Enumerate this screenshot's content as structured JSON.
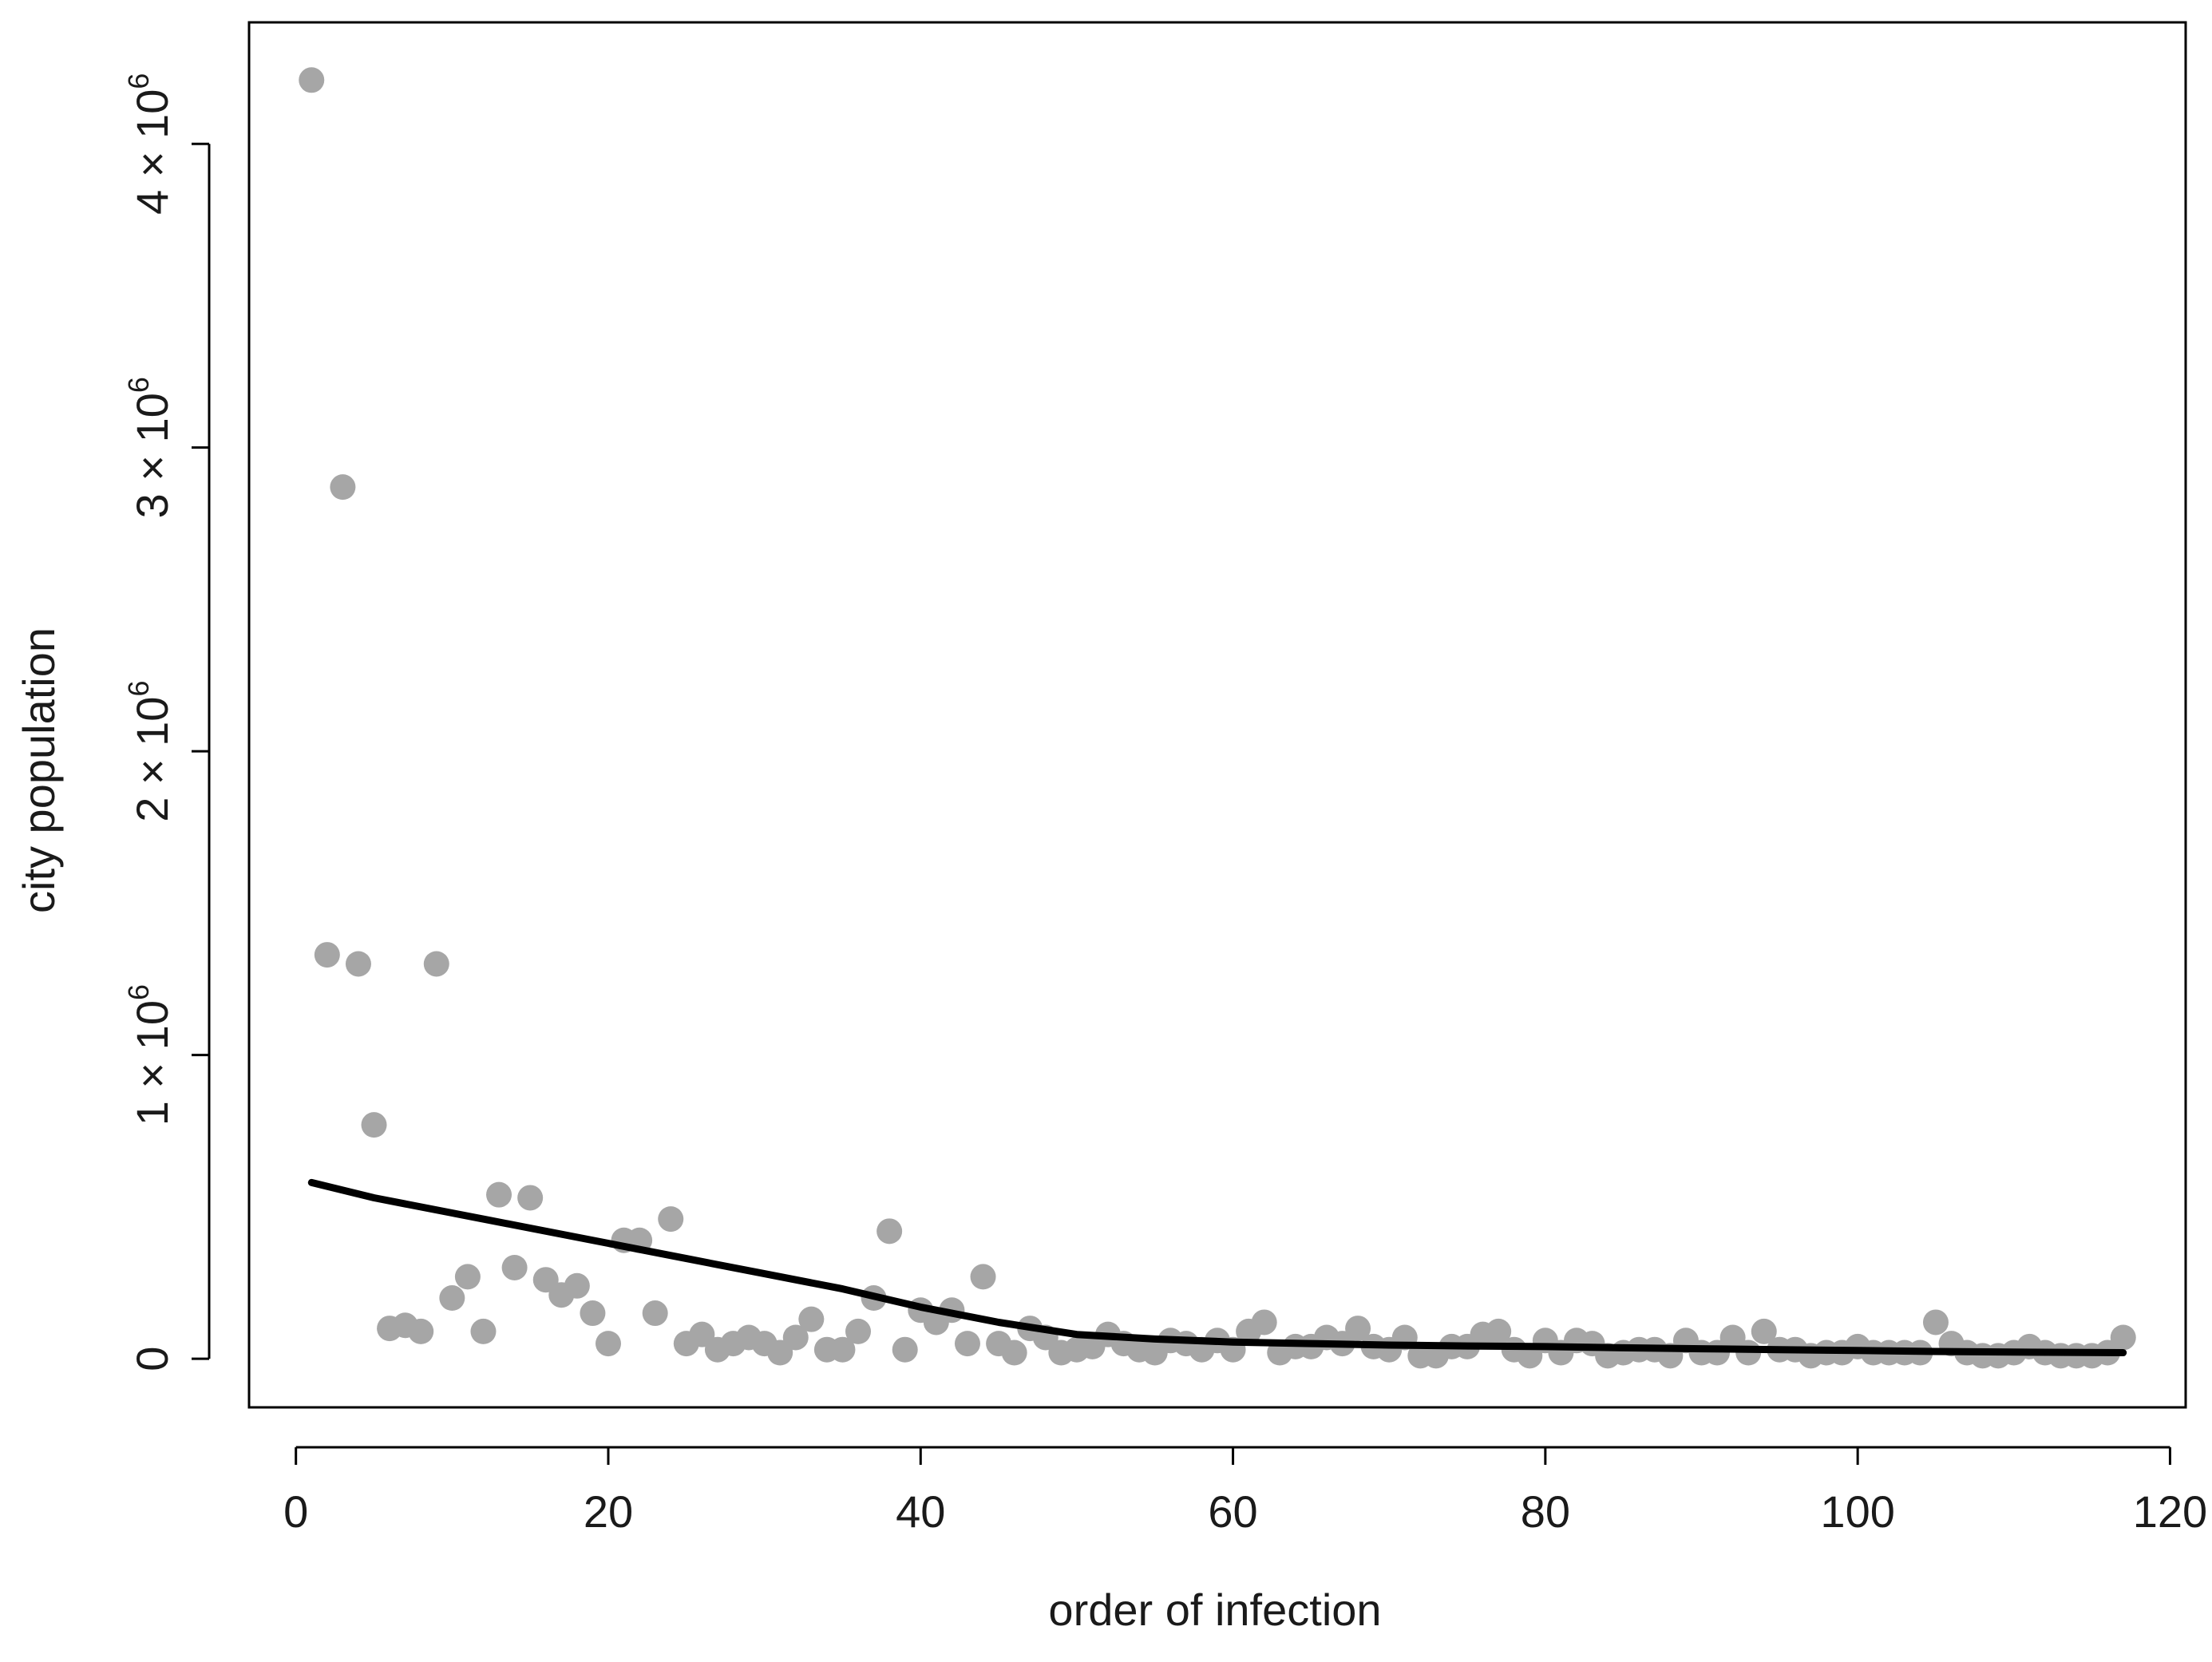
{
  "chart_data": {
    "type": "scatter",
    "title": "",
    "xlabel": "order of infection",
    "ylabel": "city population",
    "xlim": [
      -3,
      121
    ],
    "ylim": [
      -160000,
      4400000
    ],
    "grid": false,
    "x_ticks": [
      0,
      20,
      40,
      60,
      80,
      100,
      120
    ],
    "x_tick_labels": [
      "0",
      "20",
      "40",
      "60",
      "80",
      "100",
      "120"
    ],
    "y_ticks": [
      0,
      1000000,
      2000000,
      3000000,
      4000000
    ],
    "y_tick_labels": [
      {
        "base": "0",
        "exp": ""
      },
      {
        "base": "1 × 10",
        "exp": "6"
      },
      {
        "base": "2 × 10",
        "exp": "6"
      },
      {
        "base": "3 × 10",
        "exp": "6"
      },
      {
        "base": "4 × 10",
        "exp": "6"
      }
    ],
    "point_color": "#a6a6a6",
    "line_color": "#000000",
    "series": [
      {
        "mode": "points",
        "x": [
          1,
          2,
          3,
          4,
          5,
          6,
          7,
          8,
          9,
          10,
          11,
          12,
          13,
          14,
          15,
          16,
          17,
          18,
          19,
          20,
          21,
          22,
          23,
          24,
          25,
          26,
          27,
          28,
          29,
          30,
          31,
          32,
          33,
          34,
          35,
          36,
          37,
          38,
          39,
          40,
          41,
          42,
          43,
          44,
          45,
          46,
          47,
          48,
          49,
          50,
          51,
          52,
          53,
          54,
          55,
          56,
          57,
          58,
          59,
          60,
          61,
          62,
          63,
          64,
          65,
          66,
          67,
          68,
          69,
          70,
          71,
          72,
          73,
          74,
          75,
          76,
          77,
          78,
          79,
          80,
          81,
          82,
          83,
          84,
          85,
          86,
          87,
          88,
          89,
          90,
          91,
          92,
          93,
          94,
          95,
          96,
          97,
          98,
          99,
          100,
          101,
          102,
          103,
          104,
          105,
          106,
          107,
          108,
          109,
          110,
          111,
          112,
          113,
          114,
          115,
          116,
          117
        ],
        "y": [
          4210000,
          1330000,
          2870000,
          1300000,
          770000,
          100000,
          110000,
          90000,
          1300000,
          200000,
          270000,
          90000,
          540000,
          300000,
          530000,
          260000,
          210000,
          240000,
          150000,
          50000,
          390000,
          390000,
          150000,
          460000,
          50000,
          80000,
          30000,
          50000,
          70000,
          50000,
          20000,
          70000,
          130000,
          30000,
          30000,
          90000,
          200000,
          420000,
          30000,
          160000,
          120000,
          160000,
          50000,
          270000,
          50000,
          20000,
          100000,
          70000,
          20000,
          30000,
          40000,
          80000,
          50000,
          30000,
          20000,
          60000,
          50000,
          30000,
          60000,
          30000,
          90000,
          120000,
          20000,
          40000,
          40000,
          70000,
          50000,
          100000,
          40000,
          30000,
          70000,
          10000,
          10000,
          40000,
          40000,
          80000,
          90000,
          30000,
          10000,
          60000,
          20000,
          60000,
          50000,
          10000,
          20000,
          30000,
          30000,
          10000,
          60000,
          20000,
          20000,
          70000,
          20000,
          90000,
          30000,
          30000,
          10000,
          20000,
          20000,
          40000,
          20000,
          20000,
          20000,
          20000,
          120000,
          50000,
          20000,
          10000,
          10000,
          20000,
          40000,
          20000,
          10000,
          10000,
          10000,
          20000,
          70000
        ]
      },
      {
        "mode": "line",
        "x": [
          1,
          5,
          10,
          15,
          20,
          25,
          30,
          35,
          40,
          45,
          50,
          55,
          60,
          65,
          70,
          75,
          80,
          85,
          90,
          95,
          100,
          105,
          110,
          117
        ],
        "y": [
          580000,
          530000,
          480000,
          430000,
          380000,
          330000,
          280000,
          230000,
          170000,
          120000,
          80000,
          65000,
          55000,
          50000,
          45000,
          42000,
          40000,
          36000,
          33000,
          30000,
          27000,
          24000,
          22000,
          20000
        ]
      }
    ]
  }
}
